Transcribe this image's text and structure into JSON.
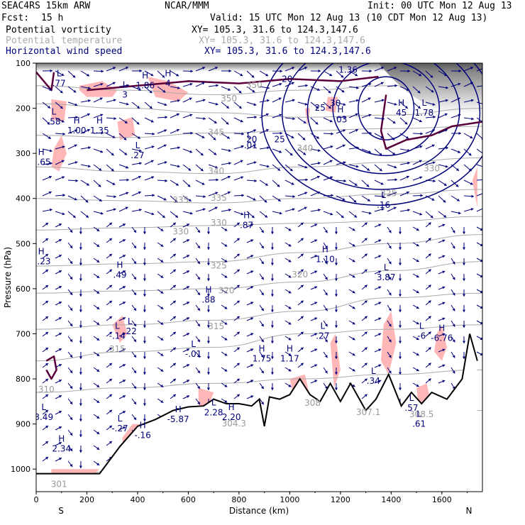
{
  "header": {
    "model": "SEAC4RS 15km ARW",
    "center": "NCAR/MMM",
    "init": "Init: 00 UTC Mon 12 Aug 13",
    "fcst_label": "Fcst:",
    "fcst_value": "15 h",
    "valid": "Valid: 15 UTC Mon 12 Aug 13 (10 CDT Mon 12 Aug 13)",
    "fields": [
      {
        "name": "Potential vorticity",
        "xy": "XY= 105.3, 31.6 to 124.3,147.6",
        "color": "#000000"
      },
      {
        "name": "Potential temperature",
        "xy": "XY= 105.3, 31.6 to 124.3,147.6",
        "color": "#aaaaaa"
      },
      {
        "name": "Horizontal wind speed",
        "xy": "XY= 105.3, 31.6 to 124.3,147.6",
        "color": "#00007a"
      }
    ]
  },
  "chart_data": {
    "type": "cross-section",
    "xlabel": "Distance (km)",
    "ylabel": "Pressure (hPa)",
    "xlim": [
      0,
      1760
    ],
    "ylim": [
      1050,
      100
    ],
    "x_ticks": [
      0,
      200,
      400,
      600,
      800,
      1000,
      1200,
      1400,
      1600
    ],
    "y_ticks": [
      100,
      200,
      300,
      400,
      500,
      600,
      700,
      800,
      900,
      1000
    ],
    "endpoint_labels": {
      "left": "S",
      "right": "N"
    },
    "colors": {
      "pv_fill": "#ffb6b6",
      "pv_line": "#5a003a",
      "theta": "#aaaaaa",
      "wind": "#00007a",
      "terrain": "#000000"
    },
    "terrain": [
      {
        "x": 0,
        "p": 1010
      },
      {
        "x": 250,
        "p": 1010
      },
      {
        "x": 330,
        "p": 950
      },
      {
        "x": 400,
        "p": 905
      },
      {
        "x": 470,
        "p": 890
      },
      {
        "x": 540,
        "p": 870
      },
      {
        "x": 600,
        "p": 862
      },
      {
        "x": 660,
        "p": 860
      },
      {
        "x": 700,
        "p": 845
      },
      {
        "x": 750,
        "p": 855
      },
      {
        "x": 800,
        "p": 855
      },
      {
        "x": 850,
        "p": 860
      },
      {
        "x": 880,
        "p": 845
      },
      {
        "x": 900,
        "p": 905
      },
      {
        "x": 920,
        "p": 840
      },
      {
        "x": 960,
        "p": 845
      },
      {
        "x": 1000,
        "p": 835
      },
      {
        "x": 1040,
        "p": 800
      },
      {
        "x": 1080,
        "p": 835
      },
      {
        "x": 1120,
        "p": 850
      },
      {
        "x": 1160,
        "p": 810
      },
      {
        "x": 1200,
        "p": 850
      },
      {
        "x": 1240,
        "p": 810
      },
      {
        "x": 1300,
        "p": 870
      },
      {
        "x": 1340,
        "p": 845
      },
      {
        "x": 1390,
        "p": 790
      },
      {
        "x": 1440,
        "p": 860
      },
      {
        "x": 1480,
        "p": 830
      },
      {
        "x": 1520,
        "p": 855
      },
      {
        "x": 1560,
        "p": 830
      },
      {
        "x": 1620,
        "p": 845
      },
      {
        "x": 1680,
        "p": 800
      },
      {
        "x": 1710,
        "p": 700
      },
      {
        "x": 1740,
        "p": 760
      }
    ],
    "theta_labels": [
      {
        "text": "350",
        "x": 860,
        "p": 155
      },
      {
        "text": "350",
        "x": 760,
        "p": 185
      },
      {
        "text": "345",
        "x": 710,
        "p": 260
      },
      {
        "text": "340",
        "x": 1060,
        "p": 295
      },
      {
        "text": "340",
        "x": 710,
        "p": 345
      },
      {
        "text": "335",
        "x": 570,
        "p": 410
      },
      {
        "text": "335",
        "x": 720,
        "p": 405
      },
      {
        "text": "330",
        "x": 570,
        "p": 480
      },
      {
        "text": "330",
        "x": 720,
        "p": 460
      },
      {
        "text": "330",
        "x": 1560,
        "p": 340
      },
      {
        "text": "325",
        "x": 1390,
        "p": 395
      },
      {
        "text": "325",
        "x": 720,
        "p": 555
      },
      {
        "text": "320",
        "x": 750,
        "p": 610
      },
      {
        "text": "320",
        "x": 1040,
        "p": 575
      },
      {
        "text": "315",
        "x": 710,
        "p": 690
      },
      {
        "text": "315",
        "x": 320,
        "p": 740
      },
      {
        "text": "310",
        "x": 40,
        "p": 830
      },
      {
        "text": "308",
        "x": 1090,
        "p": 860
      },
      {
        "text": "307.1",
        "x": 1310,
        "p": 880
      },
      {
        "text": "308.5",
        "x": 1520,
        "p": 885
      },
      {
        "text": "304.3",
        "x": 780,
        "p": 905
      },
      {
        "text": "301",
        "x": 90,
        "p": 1040
      }
    ],
    "wind_speed_labels": [
      {
        "text": "20",
        "x": 990,
        "p": 142
      },
      {
        "text": "25",
        "x": 1120,
        "p": 205
      },
      {
        "text": "30",
        "x": 1180,
        "p": 195
      },
      {
        "text": "20",
        "x": 850,
        "p": 275
      },
      {
        "text": "25",
        "x": 960,
        "p": 275
      }
    ],
    "extrema": [
      {
        "kind": "L",
        "value": ".77",
        "x": 90,
        "p": 140
      },
      {
        "kind": "L",
        "value": "3",
        "x": 350,
        "p": 165
      },
      {
        "kind": "H",
        "value": "1.86",
        "x": 430,
        "p": 145
      },
      {
        "kind": "H",
        "value": "4",
        "x": 520,
        "p": 140
      },
      {
        "kind": "L",
        "value": ".58",
        "x": 70,
        "p": 225
      },
      {
        "kind": "H",
        "value": "1.00",
        "x": 160,
        "p": 245
      },
      {
        "kind": "H",
        "value": "1.35",
        "x": 250,
        "p": 245
      },
      {
        "kind": "H",
        "value": "2.65",
        "x": 20,
        "p": 315
      },
      {
        "kind": "L",
        "value": ".27",
        "x": 400,
        "p": 300
      },
      {
        "kind": "L",
        "value": "-.01",
        "x": 840,
        "p": 278
      },
      {
        "kind": "H",
        "value": "1.36",
        "x": 1230,
        "p": 110
      },
      {
        "kind": "H",
        "value": ".03",
        "x": 1200,
        "p": 220
      },
      {
        "kind": "H",
        "value": "45",
        "x": 1440,
        "p": 205
      },
      {
        "kind": "L",
        "value": "1.78",
        "x": 1530,
        "p": 205
      },
      {
        "kind": "L",
        "value": ".16",
        "x": 1370,
        "p": 410
      },
      {
        "kind": "H",
        "value": ".87",
        "x": 830,
        "p": 455
      },
      {
        "kind": "H",
        "value": "3.23",
        "x": 20,
        "p": 535
      },
      {
        "kind": "H",
        "value": "1.10",
        "x": 1140,
        "p": 530
      },
      {
        "kind": "H",
        "value": ".49",
        "x": 330,
        "p": 565
      },
      {
        "kind": "L",
        "value": "3.87",
        "x": 1380,
        "p": 570
      },
      {
        "kind": "H",
        "value": ".88",
        "x": 680,
        "p": 620
      },
      {
        "kind": "L",
        "value": "-.14",
        "x": 320,
        "p": 700
      },
      {
        "kind": "L",
        "value": ".22",
        "x": 370,
        "p": 690
      },
      {
        "kind": "L",
        "value": ".27",
        "x": 1130,
        "p": 700
      },
      {
        "kind": "L",
        "value": "-6",
        "x": 1520,
        "p": 700
      },
      {
        "kind": "H",
        "value": "-6.76",
        "x": 1600,
        "p": 705
      },
      {
        "kind": "L",
        "value": "-.01",
        "x": 620,
        "p": 740
      },
      {
        "kind": "H",
        "value": "1.75",
        "x": 890,
        "p": 750
      },
      {
        "kind": "H",
        "value": "1.17",
        "x": 1000,
        "p": 750
      },
      {
        "kind": "L",
        "value": ".34",
        "x": 1330,
        "p": 800
      },
      {
        "kind": "L",
        "value": "3.49",
        "x": 30,
        "p": 880
      },
      {
        "kind": "H",
        "value": "-5.87",
        "x": 560,
        "p": 885
      },
      {
        "kind": "L",
        "value": "2.28",
        "x": 700,
        "p": 870
      },
      {
        "kind": "H",
        "value": "2.20",
        "x": 770,
        "p": 880
      },
      {
        "kind": "L",
        "value": "-.27",
        "x": 330,
        "p": 905
      },
      {
        "kind": "H",
        "value": "-.16",
        "x": 420,
        "p": 920
      },
      {
        "kind": "L",
        "value": ".57",
        "x": 1480,
        "p": 860
      },
      {
        "kind": "L",
        "value": ".61",
        "x": 1510,
        "p": 895
      },
      {
        "kind": "H",
        "value": "2.34",
        "x": 100,
        "p": 950
      }
    ]
  }
}
